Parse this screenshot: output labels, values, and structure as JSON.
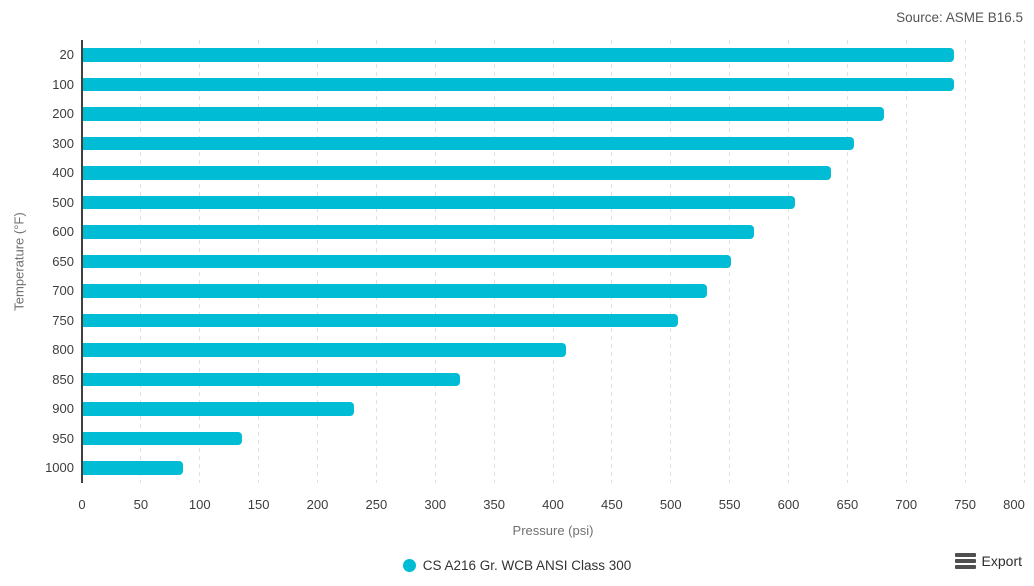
{
  "source_note": "Source: ASME B16.5",
  "chart_data": {
    "type": "bar",
    "orientation": "horizontal",
    "title": "",
    "categories": [
      "20",
      "100",
      "200",
      "300",
      "400",
      "500",
      "600",
      "650",
      "700",
      "750",
      "800",
      "850",
      "900",
      "950",
      "1000"
    ],
    "values": [
      740,
      740,
      680,
      655,
      635,
      605,
      570,
      550,
      530,
      505,
      410,
      320,
      230,
      135,
      85
    ],
    "series_name": "CS A216 Gr. WCB ANSI Class 300",
    "xlabel": "Pressure (psi)",
    "ylabel": "Temperature (°F)",
    "xlim": [
      0,
      800
    ],
    "x_ticks": [
      0,
      50,
      100,
      150,
      200,
      250,
      300,
      350,
      400,
      450,
      500,
      550,
      600,
      650,
      700,
      750,
      800
    ],
    "grid": "vertical-dashed",
    "legend_position": "bottom-center",
    "bar_color": "#00bcd4"
  },
  "legend": {
    "label": "CS A216 Gr. WCB ANSI Class 300",
    "marker_color": "#00bcd4"
  },
  "toolbar": {
    "export_label": "Export",
    "menu_icon": "hamburger-icon"
  },
  "colors": {
    "bar": "#00bcd4",
    "axis_line": "#404040",
    "gridline": "#e0e0e0",
    "tick_text": "#3d3d3d",
    "axis_title_text": "#707070",
    "source_text": "#545454",
    "legend_text": "#333333",
    "export_text": "#2e2e2e"
  }
}
